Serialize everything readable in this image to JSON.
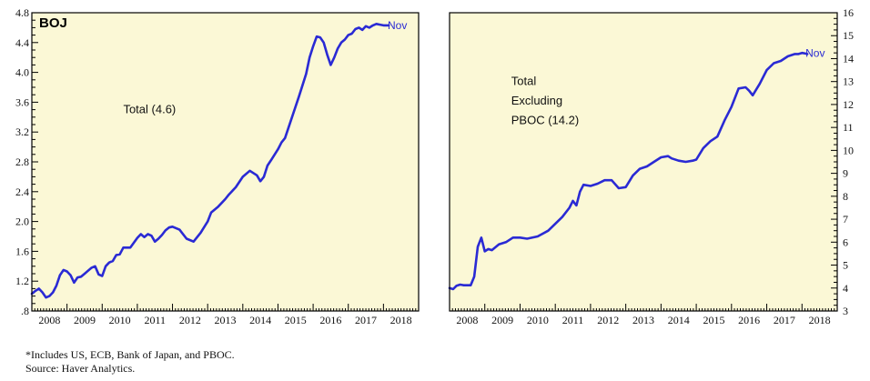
{
  "footnote": "*Includes US, ECB, Bank of Japan, and PBOC.",
  "source": "Source: Haver Analytics.",
  "colors": {
    "line": "#2a2ad4",
    "panel_bg": "#fbf8d6",
    "frame": "#000000"
  },
  "chart_data": [
    {
      "type": "line",
      "title": "BOJ",
      "xlabel": "",
      "ylabel": "",
      "ylim": [
        0.8,
        4.8
      ],
      "y_axis_side": "left",
      "yticks": [
        ".8",
        "1.2",
        "1.6",
        "2.0",
        "2.4",
        "2.8",
        "3.2",
        "3.6",
        "4.0",
        "4.4",
        "4.8"
      ],
      "xticks": [
        "2008",
        "2009",
        "2010",
        "2011",
        "2012",
        "2013",
        "2014",
        "2015",
        "2016",
        "2017",
        "2018"
      ],
      "xlim": [
        2008.0,
        2019.0
      ],
      "grid": false,
      "annotations": [
        {
          "text": "Total (4.6)",
          "x": 2010.6,
          "y": 3.5
        },
        {
          "text": "Nov",
          "x": 2018.12,
          "y": 4.63
        }
      ],
      "series": [
        {
          "name": "Total",
          "x": [
            2008.0,
            2008.1,
            2008.2,
            2008.3,
            2008.4,
            2008.5,
            2008.6,
            2008.7,
            2008.8,
            2008.9,
            2009.0,
            2009.1,
            2009.2,
            2009.3,
            2009.4,
            2009.5,
            2009.6,
            2009.7,
            2009.8,
            2009.9,
            2010.0,
            2010.1,
            2010.2,
            2010.3,
            2010.4,
            2010.5,
            2010.6,
            2010.8,
            2011.0,
            2011.1,
            2011.2,
            2011.3,
            2011.4,
            2011.5,
            2011.6,
            2011.7,
            2011.8,
            2011.9,
            2012.0,
            2012.2,
            2012.4,
            2012.6,
            2012.8,
            2013.0,
            2013.1,
            2013.3,
            2013.5,
            2013.6,
            2013.8,
            2014.0,
            2014.2,
            2014.4,
            2014.5,
            2014.6,
            2014.7,
            2014.8,
            2015.0,
            2015.1,
            2015.2,
            2015.4,
            2015.6,
            2015.8,
            2015.9,
            2016.0,
            2016.1,
            2016.2,
            2016.3,
            2016.4,
            2016.5,
            2016.6,
            2016.7,
            2016.8,
            2016.9,
            2017.0,
            2017.1,
            2017.2,
            2017.3,
            2017.4,
            2017.5,
            2017.6,
            2017.7,
            2017.8,
            2017.9,
            2018.0,
            2018.1,
            2018.15
          ],
          "values": [
            1.03,
            1.07,
            1.1,
            1.05,
            0.98,
            1.0,
            1.05,
            1.14,
            1.28,
            1.35,
            1.33,
            1.28,
            1.18,
            1.25,
            1.26,
            1.3,
            1.34,
            1.38,
            1.4,
            1.29,
            1.27,
            1.4,
            1.45,
            1.47,
            1.55,
            1.56,
            1.65,
            1.65,
            1.78,
            1.83,
            1.79,
            1.83,
            1.81,
            1.73,
            1.77,
            1.82,
            1.88,
            1.92,
            1.93,
            1.89,
            1.77,
            1.73,
            1.85,
            2.0,
            2.12,
            2.2,
            2.3,
            2.36,
            2.46,
            2.6,
            2.68,
            2.62,
            2.54,
            2.6,
            2.75,
            2.82,
            2.97,
            3.06,
            3.12,
            3.4,
            3.68,
            3.98,
            4.2,
            4.35,
            4.48,
            4.47,
            4.4,
            4.24,
            4.1,
            4.2,
            4.32,
            4.4,
            4.44,
            4.5,
            4.52,
            4.58,
            4.6,
            4.57,
            4.62,
            4.6,
            4.63,
            4.65,
            4.64,
            4.63,
            4.63,
            4.63
          ]
        }
      ]
    },
    {
      "type": "line",
      "title": "",
      "xlabel": "",
      "ylabel": "",
      "ylim": [
        3,
        16
      ],
      "y_axis_side": "right",
      "yticks": [
        "3",
        "4",
        "5",
        "6",
        "7",
        "8",
        "9",
        "10",
        "11",
        "12",
        "13",
        "14",
        "15",
        "16"
      ],
      "xticks": [
        "2008",
        "2009",
        "2010",
        "2011",
        "2012",
        "2013",
        "2014",
        "2015",
        "2016",
        "2017",
        "2018"
      ],
      "xlim": [
        2008.0,
        2019.0
      ],
      "grid": false,
      "annotations": [
        {
          "text": "Total",
          "x": 2009.75,
          "y": 13.0
        },
        {
          "text": "Excluding",
          "x": 2009.75,
          "y": 12.15
        },
        {
          "text": "PBOC (14.2)",
          "x": 2009.75,
          "y": 11.3
        },
        {
          "text": "Nov",
          "x": 2018.1,
          "y": 14.23
        }
      ],
      "series": [
        {
          "name": "Total Excluding PBOC",
          "x": [
            2008.0,
            2008.1,
            2008.2,
            2008.3,
            2008.4,
            2008.6,
            2008.7,
            2008.8,
            2008.9,
            2009.0,
            2009.1,
            2009.2,
            2009.4,
            2009.6,
            2009.8,
            2010.0,
            2010.2,
            2010.5,
            2010.8,
            2011.0,
            2011.2,
            2011.4,
            2011.5,
            2011.6,
            2011.7,
            2011.8,
            2012.0,
            2012.2,
            2012.4,
            2012.6,
            2012.8,
            2013.0,
            2013.2,
            2013.4,
            2013.6,
            2013.8,
            2014.0,
            2014.2,
            2014.3,
            2014.5,
            2014.7,
            2014.9,
            2015.0,
            2015.2,
            2015.4,
            2015.6,
            2015.8,
            2016.0,
            2016.1,
            2016.2,
            2016.4,
            2016.5,
            2016.6,
            2016.8,
            2017.0,
            2017.2,
            2017.4,
            2017.6,
            2017.8,
            2017.9,
            2018.0,
            2018.1,
            2018.15
          ],
          "values": [
            4.0,
            3.95,
            4.1,
            4.15,
            4.12,
            4.12,
            4.5,
            5.8,
            6.2,
            5.6,
            5.7,
            5.65,
            5.9,
            6.0,
            6.2,
            6.2,
            6.15,
            6.25,
            6.5,
            6.8,
            7.1,
            7.5,
            7.8,
            7.6,
            8.2,
            8.5,
            8.45,
            8.55,
            8.7,
            8.7,
            8.35,
            8.4,
            8.9,
            9.2,
            9.3,
            9.5,
            9.7,
            9.75,
            9.65,
            9.55,
            9.5,
            9.55,
            9.6,
            10.1,
            10.4,
            10.6,
            11.3,
            11.9,
            12.3,
            12.7,
            12.75,
            12.6,
            12.4,
            12.9,
            13.5,
            13.8,
            13.9,
            14.1,
            14.2,
            14.2,
            14.25,
            14.22,
            14.2
          ]
        }
      ]
    }
  ]
}
